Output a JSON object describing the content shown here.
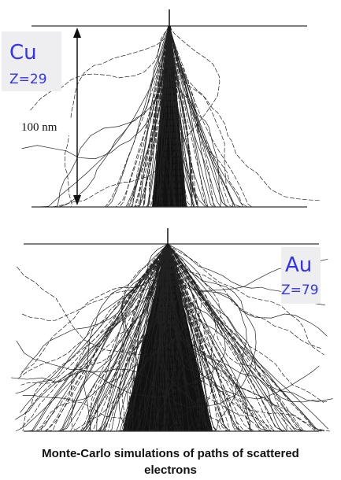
{
  "top_panel": {
    "element": "Cu",
    "atomic_number": "Z=29",
    "scale": "100 nm"
  },
  "bottom_panel": {
    "element": "Au",
    "atomic_number": "Z=79"
  },
  "caption": "Monte-Carlo simulations of paths of scattered electrons"
}
